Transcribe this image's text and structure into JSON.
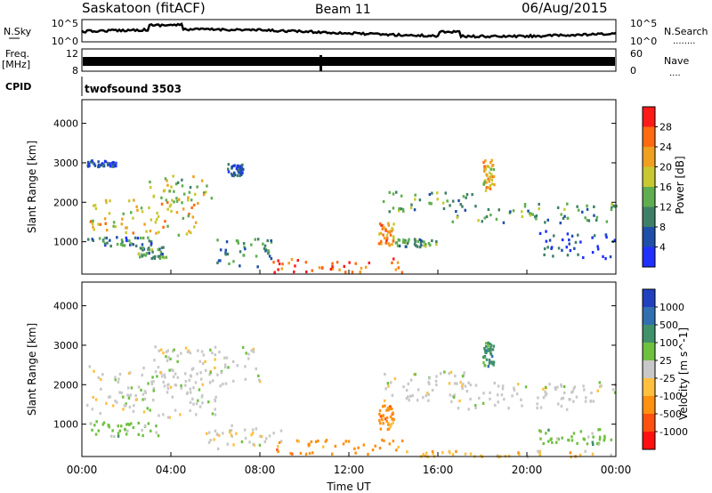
{
  "header": {
    "station": "Saskatoon (fitACF)",
    "beam": "Beam 11",
    "date": "06/Aug/2015"
  },
  "nsky_panel": {
    "left_label": "N.Sky",
    "left_ticks": [
      "10^5",
      "10^0"
    ],
    "right_ticks": [
      "10^5",
      "10^0"
    ],
    "right_label": "N.Search",
    "right_legend_line": "........"
  },
  "freq_panel": {
    "left_label_line1": "Freq.",
    "left_label_line2": "[MHz]",
    "left_ticks": [
      "12",
      "8"
    ],
    "right_ticks": [
      "60",
      "0"
    ],
    "right_label": "Nave",
    "right_legend_line": "...."
  },
  "cpid_panel": {
    "left_label": "CPID",
    "program": "twofsound 3503"
  },
  "chart_data": [
    {
      "type": "heatmap",
      "quantity": "Power",
      "ylabel": "Slant Range [km]",
      "ylim": [
        180,
        4600
      ],
      "yticks": [
        "1000",
        "2000",
        "3000",
        "4000"
      ],
      "colorbar_label": "Power [dB]",
      "colorbar_ticks": [
        "4",
        "8",
        "12",
        "16",
        "20",
        "24",
        "28"
      ],
      "colors": [
        "#1f30ff",
        "#1f4fa8",
        "#3f7f68",
        "#5fae4f",
        "#c8c832",
        "#f0a020",
        "#ff6a10",
        "#ff1a1a"
      ],
      "regions": [
        {
          "t0": 0.2,
          "t1": 5.2,
          "r0": 1200,
          "r1": 2100,
          "v": 20
        },
        {
          "t0": 0.2,
          "t1": 3.2,
          "r0": 900,
          "r1": 1150,
          "v": 8
        },
        {
          "t0": 2.5,
          "t1": 3.8,
          "r0": 600,
          "r1": 900,
          "v": 12
        },
        {
          "t0": 3.0,
          "t1": 6.0,
          "r0": 2000,
          "r1": 2700,
          "v": 16
        },
        {
          "t0": 0.2,
          "t1": 1.5,
          "r0": 2900,
          "r1": 3100,
          "v": 6
        },
        {
          "t0": 6.0,
          "t1": 8.5,
          "r0": 400,
          "r1": 1100,
          "v": 10
        },
        {
          "t0": 6.5,
          "t1": 7.2,
          "r0": 2700,
          "r1": 3000,
          "v": 6
        },
        {
          "t0": 8.5,
          "t1": 14.5,
          "r0": 250,
          "r1": 600,
          "v": 26
        },
        {
          "t0": 13.3,
          "t1": 14.0,
          "r0": 900,
          "r1": 1500,
          "v": 24
        },
        {
          "t0": 13.5,
          "t1": 17.5,
          "r0": 1800,
          "r1": 2300,
          "v": 12
        },
        {
          "t0": 14.0,
          "t1": 16.0,
          "r0": 900,
          "r1": 1100,
          "v": 12
        },
        {
          "t0": 16.5,
          "t1": 24.0,
          "r0": 1500,
          "r1": 2000,
          "v": 12
        },
        {
          "t0": 18.0,
          "t1": 18.5,
          "r0": 2300,
          "r1": 3100,
          "v": 20
        },
        {
          "t0": 20.5,
          "t1": 24.0,
          "r0": 600,
          "r1": 1300,
          "v": 6
        }
      ]
    },
    {
      "type": "heatmap",
      "quantity": "Velocity",
      "ylabel": "Slant Range [km]",
      "ylim": [
        180,
        4600
      ],
      "yticks": [
        "1000",
        "2000",
        "3000",
        "4000"
      ],
      "colorbar_label": "Velocity [m s^-1]",
      "colorbar_ticks": [
        "1000",
        "500",
        "100",
        "25",
        "-25",
        "-100",
        "-500",
        "-1000"
      ],
      "colors": [
        "#2040c0",
        "#3070b0",
        "#40906a",
        "#70c040",
        "#c8c8c8",
        "#ffc040",
        "#ff9010",
        "#ff5010",
        "#ff1010"
      ],
      "regions": [
        {
          "t0": 0.2,
          "t1": 6.0,
          "r0": 1200,
          "r1": 2500,
          "v": 0
        },
        {
          "t0": 0.2,
          "t1": 3.5,
          "r0": 700,
          "r1": 1100,
          "v": 60
        },
        {
          "t0": 3.0,
          "t1": 8.0,
          "r0": 2000,
          "r1": 3000,
          "v": 0
        },
        {
          "t0": 5.5,
          "t1": 9.0,
          "r0": 400,
          "r1": 1000,
          "v": 0
        },
        {
          "t0": 8.5,
          "t1": 14.5,
          "r0": 250,
          "r1": 650,
          "v": -150
        },
        {
          "t0": 13.3,
          "t1": 14.0,
          "r0": 900,
          "r1": 1500,
          "v": -400
        },
        {
          "t0": 13.5,
          "t1": 17.5,
          "r0": 1600,
          "r1": 2400,
          "v": 0
        },
        {
          "t0": 16.5,
          "t1": 24.0,
          "r0": 1400,
          "r1": 2100,
          "v": 0
        },
        {
          "t0": 18.0,
          "t1": 18.5,
          "r0": 2500,
          "r1": 3100,
          "v": 300
        },
        {
          "t0": 20.5,
          "t1": 24.0,
          "r0": 500,
          "r1": 900,
          "v": 60
        },
        {
          "t0": 14.5,
          "t1": 24.0,
          "r0": 200,
          "r1": 350,
          "v": -60
        }
      ]
    }
  ],
  "x_axis": {
    "ticks": [
      "00:00",
      "04:00",
      "08:00",
      "12:00",
      "16:00",
      "20:00",
      "00:00"
    ],
    "xlabel": "Time UT",
    "xlim": [
      0,
      24
    ]
  }
}
